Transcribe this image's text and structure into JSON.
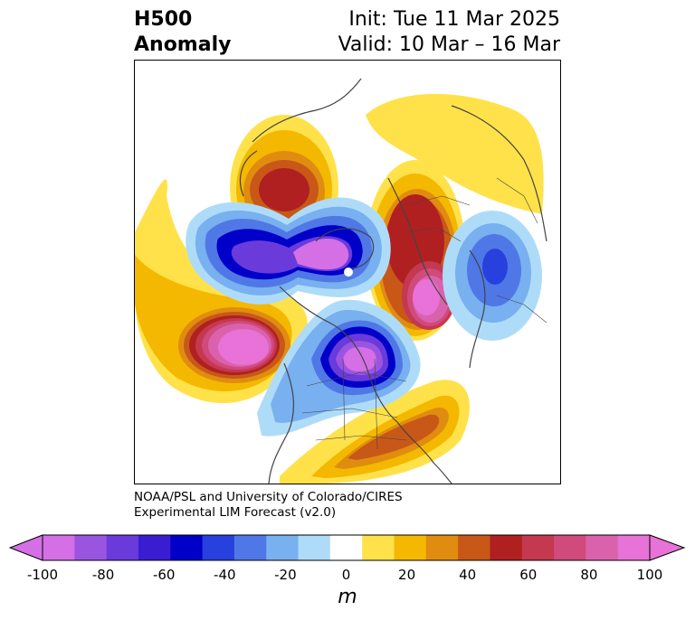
{
  "title": {
    "left_line1": "H500",
    "left_line2": "Anomaly",
    "right_line1": "Init: Tue 11 Mar 2025",
    "right_line2": "Valid: 10 Mar – 16 Mar"
  },
  "credit": {
    "line1": "NOAA/PSL and University of Colorado/CIRES",
    "line2": "Experimental LIM Forecast (v2.0)"
  },
  "colorbar": {
    "unit_label": "m",
    "ticks": [
      "-100",
      "-80",
      "-60",
      "-40",
      "-20",
      "0",
      "20",
      "40",
      "60",
      "80",
      "100"
    ],
    "levels": [
      -100,
      -90,
      -80,
      -70,
      -60,
      -50,
      -40,
      -30,
      -20,
      -10,
      10,
      20,
      30,
      40,
      50,
      60,
      70,
      80,
      90,
      100
    ],
    "colors": [
      "#d46fe6",
      "#9a55e0",
      "#6a3adb",
      "#3a1dd0",
      "#0000c8",
      "#2840dd",
      "#4f78e6",
      "#78b0f0",
      "#aedcf8",
      "#ffffff",
      "#ffe24a",
      "#f4b800",
      "#e08c10",
      "#c85818",
      "#b02020",
      "#c43850",
      "#d04a7c",
      "#da62ac",
      "#e872d8"
    ],
    "under_color": "#d46fe6",
    "over_color": "#e872d8"
  }
}
